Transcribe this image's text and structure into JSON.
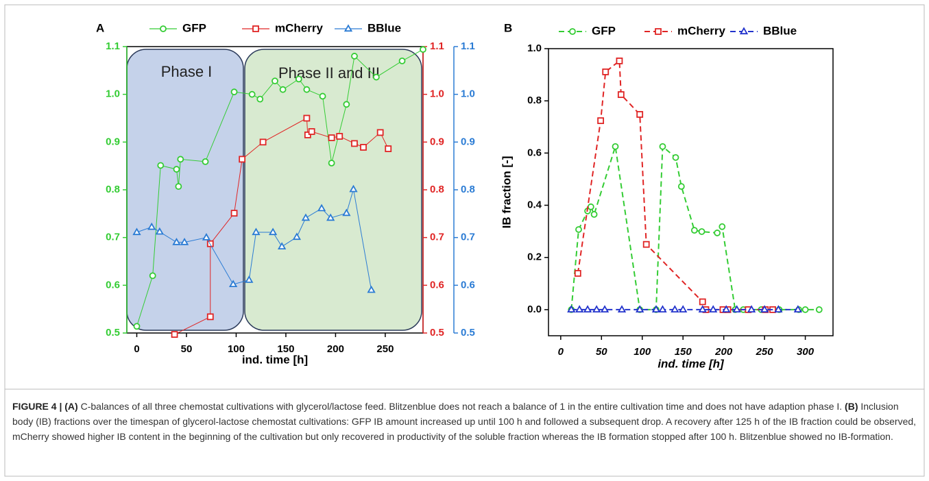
{
  "chart_data": [
    {
      "type": "line",
      "panel": "A",
      "x_label": "ind. time [h]",
      "xlim": [
        -10,
        288
      ],
      "xticks": [
        0,
        50,
        100,
        150,
        200,
        250
      ],
      "ylim": [
        0.5,
        1.1
      ],
      "yticks": [
        0.5,
        0.6,
        0.7,
        0.8,
        0.9,
        {
          "value": 1,
          "label": "1.0"
        },
        1.1
      ],
      "y2lim": [
        0.5,
        1.1
      ],
      "y2ticks": [
        0.5,
        0.6,
        0.7,
        0.8,
        0.9,
        {
          "value": 1,
          "label": "1.0"
        },
        1.1
      ],
      "y3lim": [
        0.5,
        1.1
      ],
      "y3ticks": [
        0.5,
        0.6,
        0.7,
        0.8,
        0.9,
        {
          "value": 1,
          "label": "1.0"
        },
        1.1
      ],
      "annotations": [
        "Phase I",
        "Phase II and III"
      ],
      "line_style": "solid",
      "series": [
        {
          "name": "GFP",
          "color": "#33cc33",
          "marker": "circle",
          "axis": "y",
          "x": [
            0,
            16,
            24,
            40,
            42,
            44,
            69,
            98,
            116,
            124,
            139,
            147,
            163,
            171,
            187,
            196,
            211,
            219,
            241,
            267,
            288
          ],
          "values": [
            0.514,
            0.62,
            0.851,
            0.843,
            0.807,
            0.864,
            0.859,
            1.005,
            1.0,
            0.99,
            1.028,
            1.01,
            1.032,
            1.01,
            0.996,
            0.856,
            0.979,
            1.08,
            1.036,
            1.07,
            1.094
          ]
        },
        {
          "name": "mCherry",
          "color": "#e02424",
          "marker": "square",
          "axis": "y2",
          "x": [
            38,
            74,
            74,
            98,
            106,
            127,
            171,
            172,
            176,
            196,
            204,
            219,
            228,
            245,
            253
          ],
          "values": [
            0.497,
            0.534,
            0.687,
            0.751,
            0.864,
            0.9,
            0.95,
            0.915,
            0.922,
            0.909,
            0.912,
            0.897,
            0.889,
            0.92,
            0.886
          ]
        },
        {
          "name": "BBlue",
          "color": "#2a7bd4",
          "marker": "triangle",
          "axis": "y3",
          "x": [
            0,
            15,
            23,
            40,
            48,
            70,
            97,
            113,
            120,
            137,
            146,
            161,
            170,
            186,
            195,
            211,
            218,
            236
          ],
          "values": [
            0.711,
            0.722,
            0.712,
            0.69,
            0.69,
            0.7,
            0.602,
            0.611,
            0.711,
            0.711,
            0.681,
            0.701,
            0.741,
            0.761,
            0.741,
            0.751,
            0.801,
            0.59
          ]
        }
      ]
    },
    {
      "type": "line",
      "panel": "B",
      "x_label": "ind. time [h]",
      "y_label": "IB fraction [-]",
      "xlim": [
        -15,
        334
      ],
      "xticks": [
        0,
        50,
        100,
        150,
        200,
        250,
        300
      ],
      "ylim": [
        -0.1,
        1.0
      ],
      "yticks": [
        {
          "value": 0,
          "label": "0.0"
        },
        0.2,
        0.4,
        0.6,
        0.8,
        {
          "value": 1,
          "label": "1.0"
        }
      ],
      "line_style": "dashed",
      "series": [
        {
          "name": "GFP",
          "color": "#33cc33",
          "marker": "circle",
          "axis": "y",
          "x": [
            13,
            22,
            33,
            37,
            41,
            67,
            97,
            117,
            125,
            141,
            148,
            164,
            173,
            192,
            198,
            214,
            224,
            246,
            268,
            292,
            300,
            317
          ],
          "values": [
            0,
            0.307,
            0.378,
            0.394,
            0.365,
            0.625,
            0,
            0,
            0.625,
            0.583,
            0.472,
            0.304,
            0.299,
            0.294,
            0.318,
            0,
            0,
            0,
            0,
            0,
            0,
            0
          ]
        },
        {
          "name": "mCherry",
          "color": "#e02424",
          "marker": "square",
          "axis": "y",
          "x": [
            21,
            49,
            55,
            72,
            74,
            97,
            105,
            174,
            178,
            199,
            205,
            230,
            251,
            260
          ],
          "values": [
            0.139,
            0.724,
            0.911,
            0.953,
            0.824,
            0.748,
            0.25,
            0.03,
            0,
            0,
            0,
            0,
            0,
            0
          ]
        },
        {
          "name": "BBlue",
          "color": "#2233cc",
          "marker": "triangle",
          "axis": "y",
          "x": [
            13,
            23,
            33,
            44,
            54,
            75,
            97,
            117,
            125,
            140,
            150,
            174,
            187,
            203,
            216,
            234,
            250,
            267,
            291
          ],
          "values": [
            0,
            0,
            0,
            0,
            0,
            0,
            0,
            0,
            0,
            0,
            0,
            0,
            0,
            0,
            0,
            0,
            0,
            0,
            0
          ]
        }
      ]
    }
  ],
  "caption": {
    "label": "FIGURE 4 |",
    "part_a_label": "(A)",
    "part_a_text": "C-balances of all three chemostat cultivations with glycerol/lactose feed. Blitzenblue does not reach a balance of 1 in the entire cultivation time and does not have adaption phase I.",
    "part_b_label": "(B)",
    "part_b_text": "Inclusion body (IB) fractions over the timespan of glycerol-lactose chemostat cultivations: GFP IB amount increased up until 100 h and followed a subsequent drop. A recovery after 125 h of the IB fraction could be observed, mCherry showed higher IB content in the beginning of the cultivation but only recovered in productivity of the soluble fraction whereas the IB formation stopped after 100 h. Blitzenblue showed no IB-formation."
  }
}
